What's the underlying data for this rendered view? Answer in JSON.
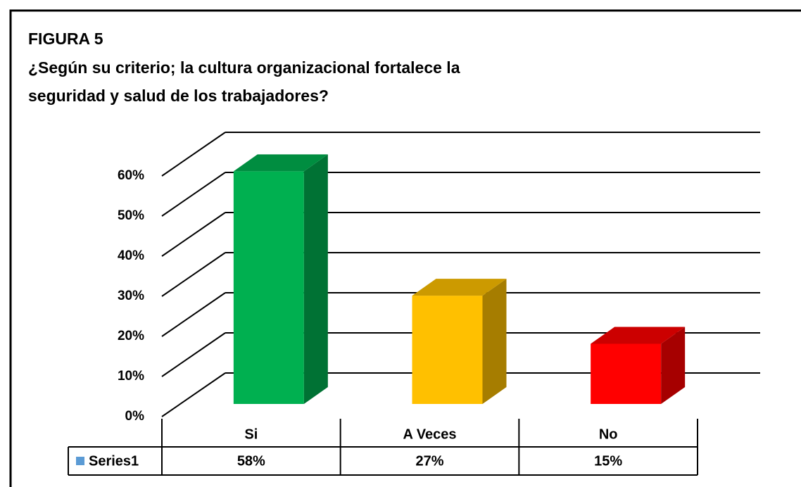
{
  "chart_data": {
    "type": "bar3d",
    "title": "FIGURA 5",
    "subtitle_lines": [
      "¿Según su criterio; la cultura organizacional fortalece la",
      "seguridad y salud de los trabajadores?"
    ],
    "categories": [
      "Si",
      "A Veces",
      "No"
    ],
    "series": [
      {
        "name": "Series1",
        "color": "#5b9bd5",
        "values": [
          58,
          27,
          15
        ],
        "value_labels": [
          "58%",
          "27%",
          "15%"
        ]
      }
    ],
    "bar_colors": [
      "#00b050",
      "#ffc000",
      "#ff0000"
    ],
    "ylim": [
      0,
      60
    ],
    "yticks": [
      {
        "value": 0,
        "label": "0%"
      },
      {
        "value": 10,
        "label": "10%"
      },
      {
        "value": 20,
        "label": "20%"
      },
      {
        "value": 30,
        "label": "30%"
      },
      {
        "value": 40,
        "label": "40%"
      },
      {
        "value": 50,
        "label": "50%"
      },
      {
        "value": 60,
        "label": "60%"
      }
    ],
    "grid": true
  }
}
